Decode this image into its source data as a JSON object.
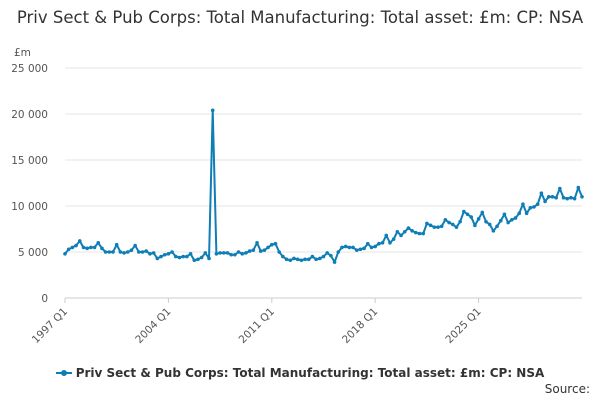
{
  "chart_data": {
    "type": "line",
    "title": "Priv Sect & Pub Corps: Total Manufacturing: Total asset: £m: CP: NSA",
    "ylabel": "£m",
    "xlabel": "",
    "ylim": [
      0,
      25000
    ],
    "y_ticks": [
      "0",
      "5 000",
      "10 000",
      "15 000",
      "20 000",
      "25 000"
    ],
    "y_tick_values": [
      0,
      5000,
      10000,
      15000,
      20000,
      25000
    ],
    "x_ticks": [
      "1997 Q1",
      "2004 Q1",
      "2011 Q1",
      "2018 Q1",
      "2025 Q1"
    ],
    "grid": "horizontal",
    "legend_position": "bottom",
    "series": [
      {
        "name": "Priv Sect & Pub Corps: Total Manufacturing: Total asset: £m: CP: NSA",
        "color": "#0f7eb6",
        "start": "1997 Q1",
        "frequency": "quarterly",
        "values": [
          4800,
          5300,
          5500,
          5700,
          6200,
          5500,
          5400,
          5500,
          5500,
          6000,
          5400,
          5000,
          5000,
          5000,
          5800,
          5000,
          4900,
          5000,
          5200,
          5700,
          5000,
          5000,
          5100,
          4800,
          4900,
          4300,
          4500,
          4700,
          4800,
          5000,
          4500,
          4400,
          4500,
          4500,
          4800,
          4100,
          4200,
          4400,
          4900,
          4300,
          20400,
          4800,
          4900,
          4900,
          4900,
          4700,
          4700,
          5000,
          4800,
          4900,
          5100,
          5200,
          6000,
          5100,
          5200,
          5500,
          5800,
          5900,
          5000,
          4500,
          4200,
          4100,
          4300,
          4200,
          4100,
          4200,
          4200,
          4500,
          4200,
          4300,
          4500,
          4900,
          4600,
          3900,
          5000,
          5500,
          5600,
          5500,
          5500,
          5200,
          5300,
          5400,
          5900,
          5500,
          5600,
          5900,
          6000,
          6800,
          6000,
          6400,
          7200,
          6800,
          7200,
          7600,
          7300,
          7100,
          7000,
          7000,
          8100,
          7900,
          7700,
          7700,
          7800,
          8500,
          8200,
          8000,
          7700,
          8300,
          9400,
          9100,
          8800,
          7900,
          8600,
          9300,
          8300,
          8000,
          7300,
          7800,
          8400,
          9100,
          8200,
          8500,
          8700,
          9200,
          10200,
          9200,
          9800,
          9900,
          10200,
          11400,
          10500,
          11000,
          11000,
          10900,
          11900,
          10900,
          10800,
          10900,
          10800,
          12000,
          11000
        ]
      }
    ],
    "source_label": "Source:"
  }
}
